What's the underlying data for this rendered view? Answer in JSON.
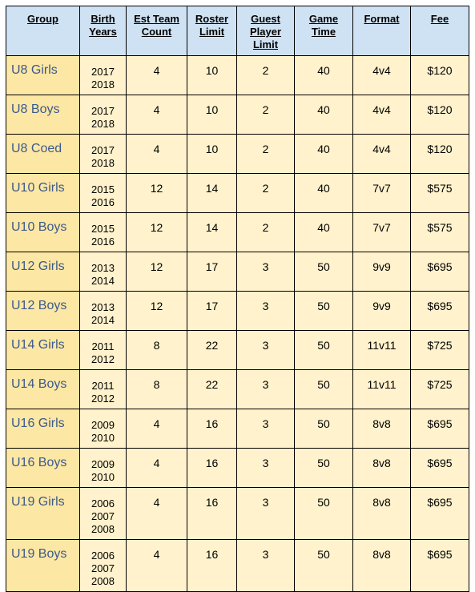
{
  "table": {
    "header": [
      [
        "Group"
      ],
      [
        "Birth",
        "Years"
      ],
      [
        "Est Team",
        "Count"
      ],
      [
        "Roster",
        "Limit"
      ],
      [
        "Guest",
        "Player",
        "Limit"
      ],
      [
        "Game",
        "Time"
      ],
      [
        "Format"
      ],
      [
        "Fee"
      ]
    ],
    "rows": [
      {
        "group": "U8 Girls",
        "birth_years": [
          "2017",
          "2018"
        ],
        "team_count": 4,
        "roster_limit": 10,
        "guest_limit": 2,
        "game_time": 40,
        "format": "4v4",
        "fee": "$120"
      },
      {
        "group": "U8 Boys",
        "birth_years": [
          "2017",
          "2018"
        ],
        "team_count": 4,
        "roster_limit": 10,
        "guest_limit": 2,
        "game_time": 40,
        "format": "4v4",
        "fee": "$120"
      },
      {
        "group": "U8 Coed",
        "birth_years": [
          "2017",
          "2018"
        ],
        "team_count": 4,
        "roster_limit": 10,
        "guest_limit": 2,
        "game_time": 40,
        "format": "4v4",
        "fee": "$120"
      },
      {
        "group": "U10 Girls",
        "birth_years": [
          "2015",
          "2016"
        ],
        "team_count": 12,
        "roster_limit": 14,
        "guest_limit": 2,
        "game_time": 40,
        "format": "7v7",
        "fee": "$575"
      },
      {
        "group": "U10 Boys",
        "birth_years": [
          "2015",
          "2016"
        ],
        "team_count": 12,
        "roster_limit": 14,
        "guest_limit": 2,
        "game_time": 40,
        "format": "7v7",
        "fee": "$575"
      },
      {
        "group": "U12 Girls",
        "birth_years": [
          "2013",
          "2014"
        ],
        "team_count": 12,
        "roster_limit": 17,
        "guest_limit": 3,
        "game_time": 50,
        "format": "9v9",
        "fee": "$695"
      },
      {
        "group": "U12 Boys",
        "birth_years": [
          "2013",
          "2014"
        ],
        "team_count": 12,
        "roster_limit": 17,
        "guest_limit": 3,
        "game_time": 50,
        "format": "9v9",
        "fee": "$695"
      },
      {
        "group": "U14 Girls",
        "birth_years": [
          "2011",
          "2012"
        ],
        "team_count": 8,
        "roster_limit": 22,
        "guest_limit": 3,
        "game_time": 50,
        "format": "11v11",
        "fee": "$725"
      },
      {
        "group": "U14 Boys",
        "birth_years": [
          "2011",
          "2012"
        ],
        "team_count": 8,
        "roster_limit": 22,
        "guest_limit": 3,
        "game_time": 50,
        "format": "11v11",
        "fee": "$725"
      },
      {
        "group": "U16 Girls",
        "birth_years": [
          "2009",
          "2010"
        ],
        "team_count": 4,
        "roster_limit": 16,
        "guest_limit": 3,
        "game_time": 50,
        "format": "8v8",
        "fee": "$695"
      },
      {
        "group": "U16 Boys",
        "birth_years": [
          "2009",
          "2010"
        ],
        "team_count": 4,
        "roster_limit": 16,
        "guest_limit": 3,
        "game_time": 50,
        "format": "8v8",
        "fee": "$695"
      },
      {
        "group": "U19 Girls",
        "birth_years": [
          "2006",
          "2007",
          "2008"
        ],
        "team_count": 4,
        "roster_limit": 16,
        "guest_limit": 3,
        "game_time": 50,
        "format": "8v8",
        "fee": "$695"
      },
      {
        "group": "U19 Boys",
        "birth_years": [
          "2006",
          "2007",
          "2008"
        ],
        "team_count": 4,
        "roster_limit": 16,
        "guest_limit": 3,
        "game_time": 50,
        "format": "8v8",
        "fee": "$695"
      }
    ]
  }
}
